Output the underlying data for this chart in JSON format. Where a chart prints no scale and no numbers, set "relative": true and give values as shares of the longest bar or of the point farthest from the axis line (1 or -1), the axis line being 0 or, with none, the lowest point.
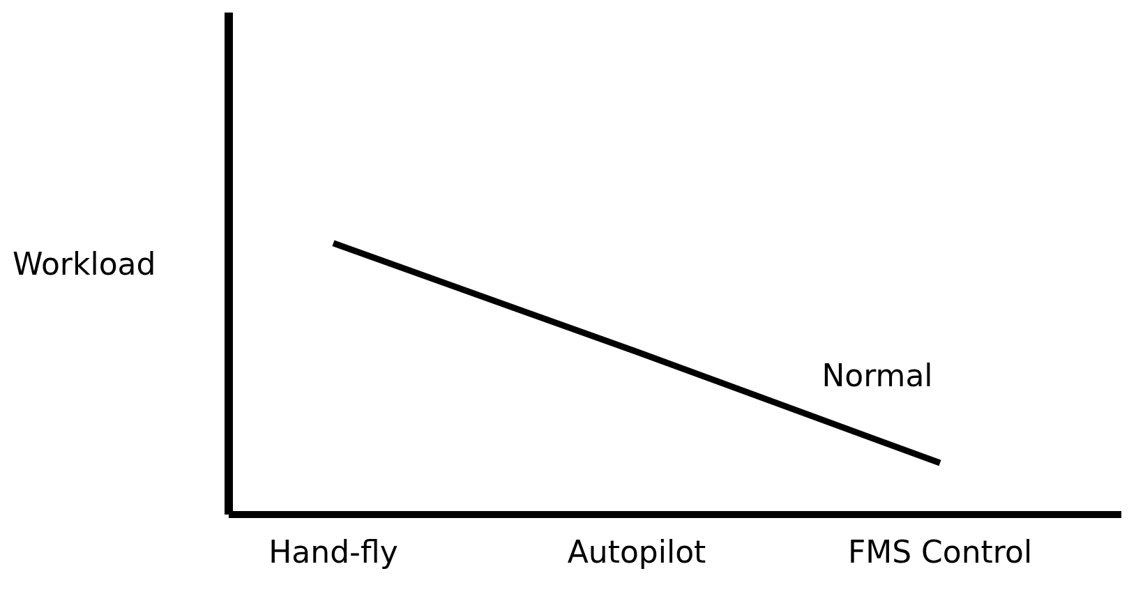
{
  "chart_data": {
    "type": "line",
    "relative": true,
    "ylabel": "Workload",
    "categories": [
      "Hand-fly",
      "Autopilot",
      "FMS Control"
    ],
    "series": [
      {
        "name": "Normal",
        "color": "#000000",
        "values": [
          1,
          0.6,
          0.19
        ]
      }
    ],
    "grid": false,
    "legend": false,
    "marker": "none",
    "line_style": "solid"
  }
}
